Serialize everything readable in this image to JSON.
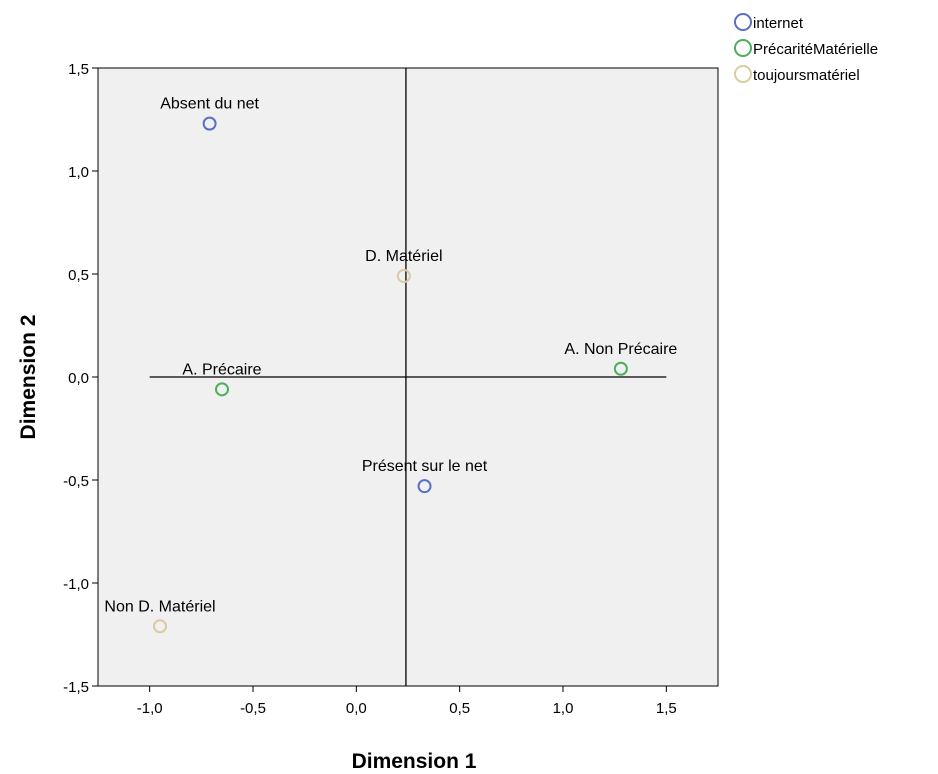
{
  "chart_data": {
    "type": "scatter",
    "title": "",
    "xlabel": "Dimension 1",
    "ylabel": "Dimension 2",
    "xlim": [
      -1.25,
      1.75
    ],
    "ylim": [
      -1.5,
      1.5
    ],
    "x_ticks": [
      {
        "value": -1.0,
        "label": "-1,0"
      },
      {
        "value": -0.5,
        "label": "-0,5"
      },
      {
        "value": 0.0,
        "label": "0,0"
      },
      {
        "value": 0.5,
        "label": "0,5"
      },
      {
        "value": 1.0,
        "label": "1,0"
      },
      {
        "value": 1.5,
        "label": "1,5"
      }
    ],
    "y_ticks": [
      {
        "value": 1.5,
        "label": "1,5"
      },
      {
        "value": 1.0,
        "label": "1,0"
      },
      {
        "value": 0.5,
        "label": "0,5"
      },
      {
        "value": 0.0,
        "label": "0,0"
      },
      {
        "value": -0.5,
        "label": "-0,5"
      },
      {
        "value": -1.0,
        "label": "-1,0"
      },
      {
        "value": -1.5,
        "label": "-1,5"
      }
    ],
    "reference_lines": {
      "vertical_x": 0.24,
      "horizontal_y": 0.0,
      "horizontal_from_x": -1.0,
      "horizontal_to_x": 1.5
    },
    "legend_position": "top-right, outside plot",
    "background_color": "#f0f0f0",
    "series": [
      {
        "name": "internet",
        "color": "#5a6fc4",
        "points": [
          {
            "x": -0.71,
            "y": 1.23,
            "label": "Absent du net"
          },
          {
            "x": 0.33,
            "y": -0.53,
            "label": "Présent sur le  net"
          }
        ]
      },
      {
        "name": "PrécaritéMatérielle",
        "color": "#4cb05a",
        "points": [
          {
            "x": -0.65,
            "y": -0.06,
            "label": "A. Précaire"
          },
          {
            "x": 1.28,
            "y": 0.04,
            "label": "A. Non  Précaire"
          }
        ]
      },
      {
        "name": "toujoursmatériel",
        "color": "#d8cca0",
        "points": [
          {
            "x": 0.23,
            "y": 0.49,
            "label": "D. Matériel"
          },
          {
            "x": -0.95,
            "y": -1.21,
            "label": "Non D. Matériel"
          }
        ]
      }
    ]
  }
}
